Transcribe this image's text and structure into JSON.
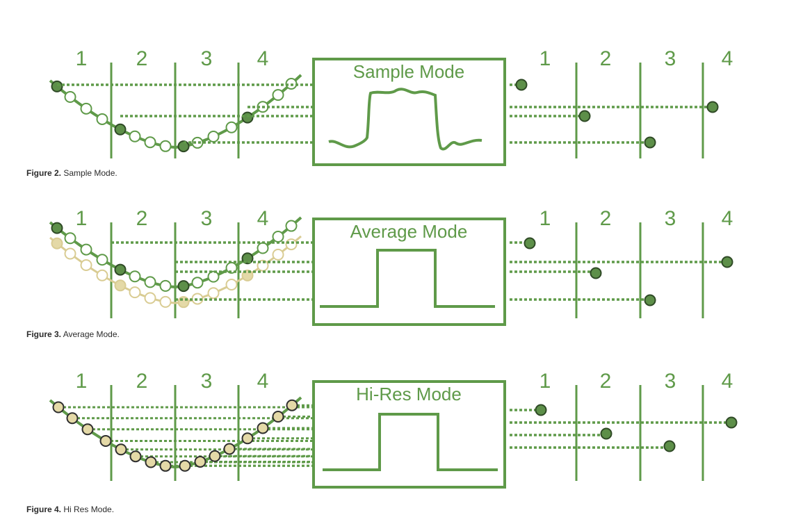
{
  "colors": {
    "green": "#5f9a49",
    "dark_dot": "#5d8f49",
    "light_dot_fill": "#ffffff",
    "tan": "#d9cc93",
    "tan_fill": "#e4d9a7"
  },
  "figures": [
    {
      "id": "sample",
      "box_label": "Sample Mode",
      "input_labels": [
        "1",
        "2",
        "3",
        "4"
      ],
      "output_labels": [
        "1",
        "2",
        "3",
        "4"
      ],
      "caption_bold": "Figure 2.",
      "caption_text": " Sample Mode."
    },
    {
      "id": "average",
      "box_label": "Average Mode",
      "input_labels": [
        "1",
        "2",
        "3",
        "4"
      ],
      "output_labels": [
        "1",
        "2",
        "3",
        "4"
      ],
      "caption_bold": "Figure 3.",
      "caption_text": " Average Mode."
    },
    {
      "id": "hires",
      "box_label": "Hi-Res Mode",
      "input_labels": [
        "1",
        "2",
        "3",
        "4"
      ],
      "output_labels": [
        "1",
        "2",
        "3",
        "4"
      ],
      "caption_bold": "Figure 4.",
      "caption_text": " Hi Res Mode."
    }
  ]
}
